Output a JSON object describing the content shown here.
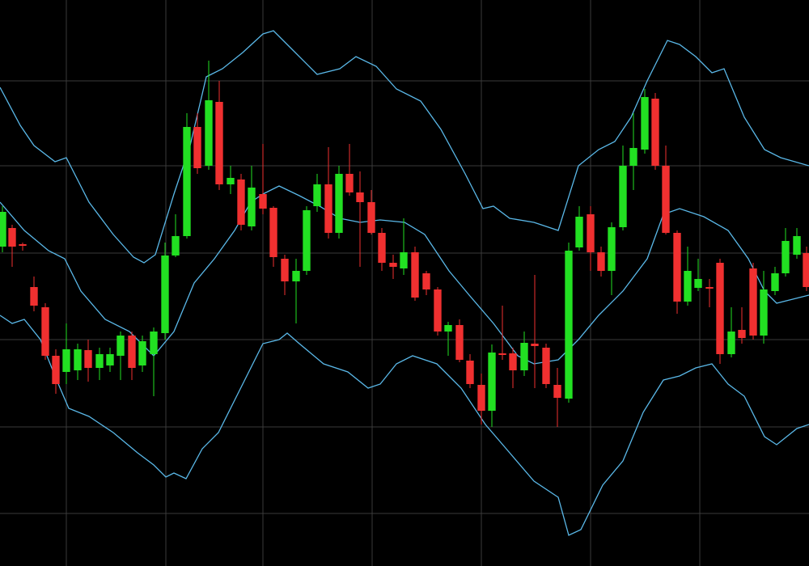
{
  "chart_data": {
    "type": "candlestick",
    "background": "#000000",
    "grid": true,
    "grid_color": "#3a3a3a",
    "up_color": "#22e022",
    "down_color": "#f03030",
    "xlim": [
      0,
      1000
    ],
    "ylim": [
      0,
      700
    ],
    "xticks": [
      82,
      205,
      325,
      460,
      595,
      730,
      865
    ],
    "yticks": [
      65,
      172,
      280,
      387,
      495,
      600
    ],
    "x": [
      3,
      15,
      28,
      42,
      56,
      69,
      82,
      96,
      109,
      123,
      136,
      149,
      163,
      176,
      190,
      204,
      217,
      231,
      244,
      258,
      271,
      285,
      298,
      311,
      325,
      338,
      352,
      366,
      379,
      392,
      406,
      419,
      432,
      445,
      459,
      472,
      486,
      499,
      513,
      527,
      541,
      554,
      568,
      581,
      595,
      608,
      621,
      634,
      648,
      661,
      675,
      689,
      703,
      716,
      730,
      743,
      756,
      770,
      783,
      797,
      810,
      823,
      837,
      850,
      863,
      877,
      890,
      904,
      917,
      931,
      944,
      958,
      971,
      985,
      997
    ],
    "open": [
      395,
      418,
      398,
      345,
      320,
      260,
      240,
      242,
      267,
      245,
      248,
      260,
      285,
      248,
      262,
      288,
      384,
      408,
      543,
      495,
      574,
      472,
      478,
      420,
      460,
      443,
      380,
      352,
      365,
      445,
      472,
      412,
      485,
      462,
      450,
      412,
      375,
      368,
      388,
      362,
      342,
      290,
      298,
      254,
      224,
      192,
      263,
      263,
      242,
      275,
      270,
      224,
      207,
      394,
      435,
      388,
      365,
      419,
      495,
      515,
      578,
      495,
      412,
      327,
      344,
      345,
      375,
      262,
      292,
      368,
      285,
      340,
      362,
      385,
      387
    ],
    "high": [
      445,
      422,
      400,
      358,
      325,
      268,
      300,
      275,
      280,
      270,
      270,
      290,
      290,
      285,
      295,
      400,
      435,
      560,
      560,
      625,
      600,
      495,
      485,
      495,
      522,
      445,
      385,
      380,
      445,
      485,
      518,
      495,
      522,
      488,
      465,
      418,
      385,
      430,
      395,
      365,
      345,
      302,
      305,
      262,
      238,
      274,
      322,
      270,
      290,
      360,
      275,
      245,
      400,
      445,
      445,
      395,
      425,
      520,
      560,
      590,
      585,
      520,
      415,
      395,
      380,
      355,
      380,
      320,
      320,
      375,
      365,
      370,
      418,
      418,
      395
    ],
    "low": [
      388,
      370,
      390,
      315,
      255,
      213,
      225,
      230,
      228,
      230,
      240,
      230,
      230,
      240,
      210,
      280,
      382,
      405,
      485,
      490,
      465,
      460,
      415,
      415,
      435,
      370,
      335,
      300,
      360,
      438,
      405,
      405,
      458,
      370,
      410,
      365,
      355,
      360,
      328,
      335,
      285,
      260,
      252,
      220,
      175,
      172,
      255,
      220,
      235,
      220,
      220,
      172,
      202,
      390,
      365,
      358,
      335,
      415,
      465,
      510,
      490,
      410,
      312,
      322,
      340,
      320,
      250,
      258,
      275,
      280,
      275,
      335,
      358,
      380,
      340
    ],
    "close": [
      438,
      395,
      396,
      322,
      260,
      225,
      268,
      268,
      245,
      262,
      262,
      285,
      245,
      278,
      290,
      384,
      408,
      543,
      492,
      576,
      472,
      480,
      422,
      468,
      442,
      382,
      352,
      365,
      440,
      472,
      412,
      485,
      462,
      450,
      412,
      375,
      370,
      388,
      332,
      342,
      290,
      298,
      255,
      225,
      192,
      264,
      261,
      242,
      276,
      272,
      225,
      208,
      390,
      432,
      388,
      365,
      419,
      495,
      517,
      580,
      495,
      412,
      327,
      365,
      355,
      343,
      262,
      290,
      282,
      285,
      342,
      362,
      402,
      408,
      345
    ],
    "lines": [
      {
        "color": "#5ab8e8",
        "x": [
          0,
          25,
          42,
          68,
          82,
          110,
          140,
          165,
          178,
          192,
          215,
          235,
          255,
          275,
          300,
          325,
          338,
          360,
          392,
          420,
          440,
          465,
          490,
          520,
          545,
          575,
          597,
          610,
          630,
          660,
          690,
          715,
          740,
          760,
          780,
          800,
          825,
          840,
          860,
          880,
          895,
          920,
          945,
          965,
          1000
        ],
        "values": [
          592,
          545,
          520,
          500,
          505,
          450,
          410,
          382,
          375,
          385,
          460,
          520,
          605,
          615,
          635,
          658,
          662,
          640,
          608,
          615,
          630,
          618,
          590,
          575,
          540,
          485,
          442,
          445,
          430,
          425,
          415,
          495,
          515,
          525,
          555,
          600,
          650,
          645,
          630,
          610,
          615,
          555,
          515,
          505,
          495
        ]
      },
      {
        "color": "#5ab8e8",
        "x": [
          0,
          30,
          60,
          80,
          100,
          130,
          160,
          190,
          215,
          240,
          265,
          290,
          310,
          325,
          345,
          370,
          395,
          420,
          445,
          470,
          500,
          525,
          555,
          580,
          610,
          640,
          660,
          690,
          715,
          740,
          770,
          800,
          820,
          840,
          870,
          900,
          925,
          945,
          960,
          1000
        ],
        "values": [
          450,
          415,
          390,
          380,
          340,
          305,
          290,
          260,
          290,
          350,
          380,
          415,
          450,
          460,
          470,
          458,
          445,
          430,
          425,
          428,
          425,
          410,
          365,
          335,
          300,
          260,
          250,
          255,
          280,
          310,
          340,
          380,
          435,
          442,
          432,
          415,
          380,
          340,
          325,
          335
        ]
      },
      {
        "color": "#5ab8e8",
        "x": [
          0,
          15,
          30,
          50,
          70,
          85,
          110,
          140,
          170,
          190,
          205,
          215,
          230,
          250,
          270,
          290,
          310,
          325,
          345,
          355,
          370,
          400,
          430,
          455,
          470,
          490,
          510,
          540,
          570,
          600,
          630,
          660,
          690,
          703,
          718,
          745,
          770,
          795,
          820,
          840,
          860,
          880,
          900,
          920,
          945,
          960,
          985,
          1000
        ],
        "values": [
          310,
          300,
          305,
          280,
          230,
          195,
          185,
          165,
          140,
          125,
          110,
          115,
          108,
          145,
          165,
          205,
          245,
          275,
          280,
          288,
          275,
          250,
          240,
          220,
          225,
          250,
          260,
          250,
          220,
          175,
          140,
          105,
          85,
          38,
          45,
          100,
          130,
          190,
          230,
          235,
          245,
          250,
          225,
          210,
          160,
          150,
          170,
          175
        ]
      }
    ]
  }
}
